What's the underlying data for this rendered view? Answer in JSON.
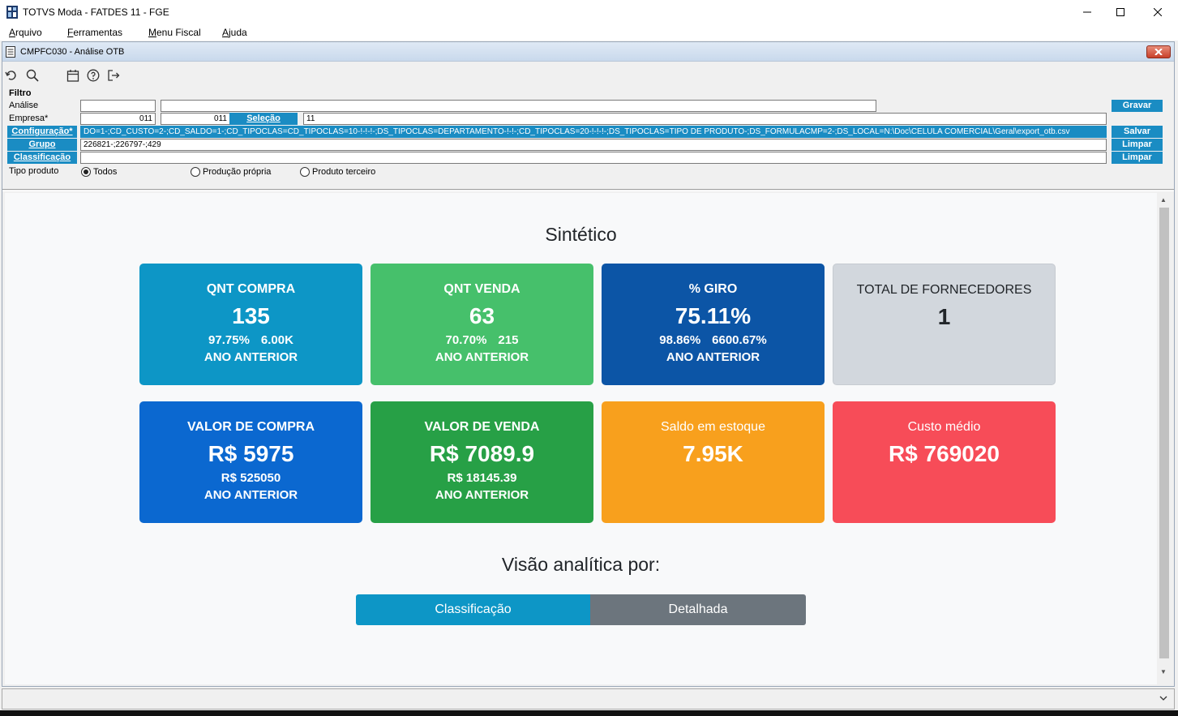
{
  "window": {
    "title": "TOTVS Moda - FATDES 11 - FGE",
    "icons": {
      "app": "app-icon",
      "minimize": "minimize-icon",
      "maximize": "maximize-icon",
      "close": "close-icon"
    }
  },
  "menubar": {
    "items": [
      {
        "first": "A",
        "rest": "rquivo"
      },
      {
        "first": "F",
        "rest": "erramentas"
      },
      {
        "first": "M",
        "rest": "enu Fiscal"
      },
      {
        "first": "A",
        "rest": "juda"
      }
    ]
  },
  "form": {
    "title": "CMPFC030 - Análise OTB",
    "toolbar": [
      "undo-icon",
      "search-icon",
      "calendar-icon",
      "help-icon",
      "exit-icon"
    ],
    "filter_label": "Filtro",
    "analise_label": "Análise",
    "analise_value": "",
    "analise_desc": "",
    "empresa_label": "Empresa*",
    "empresa_from": "011",
    "empresa_to": "011",
    "selecao_button": "Seleção",
    "selecao_value": "11",
    "configuracao_button": "Configuração*",
    "configuracao_value": "DO=1-;CD_CUSTO=2-;CD_SALDO=1-;CD_TIPOCLAS=CD_TIPOCLAS=10-!-!-!-;DS_TIPOCLAS=DEPARTAMENTO-!-!-;CD_TIPOCLAS=20-!-!-!-;DS_TIPOCLAS=TIPO DE PRODUTO-;DS_FORMULACMP=2-;DS_LOCAL=N:\\Doc\\CELULA COMERCIAL\\Geral\\export_otb.csv",
    "grupo_button": "Grupo",
    "grupo_value": "226821-;226797-;429",
    "classificacao_button": "Classificação",
    "classificacao_value": "",
    "gravar_button": "Gravar",
    "salvar_button": "Salvar",
    "limpar_button_1": "Limpar",
    "limpar_button_2": "Limpar",
    "tipo_produto_label": "Tipo produto",
    "radio_options": [
      "Todos",
      "Produção própria",
      "Produto terceiro"
    ],
    "radio_selected": "Todos"
  },
  "dashboard": {
    "sintetico_title": "Sintético",
    "cards_row1": [
      {
        "title": "QNT COMPRA",
        "main": "135",
        "sub_a": "97.75%",
        "sub_b": "6.00K",
        "prev": "ANO ANTERIOR",
        "color": "#0d96c6"
      },
      {
        "title": "QNT VENDA",
        "main": "63",
        "sub_a": "70.70%",
        "sub_b": "215",
        "prev": "ANO ANTERIOR",
        "color": "#46c06b"
      },
      {
        "title": "% GIRO",
        "main": "75.11%",
        "sub_a": "98.86%",
        "sub_b": "6600.67%",
        "prev": "ANO ANTERIOR",
        "color": "#0c55a6"
      },
      {
        "title": "TOTAL DE FORNECEDORES",
        "main": "1",
        "color": "#d2d7dd"
      }
    ],
    "cards_row2": [
      {
        "title": "VALOR DE COMPRA",
        "main": "R$ 5975",
        "sub": "R$ 525050",
        "prev": "ANO ANTERIOR",
        "color": "#0b68d0"
      },
      {
        "title": "VALOR DE VENDA",
        "main": "R$ 7089.9",
        "sub": "R$ 18145.39",
        "prev": "ANO ANTERIOR",
        "color": "#27a046"
      },
      {
        "title": "Saldo em estoque",
        "main": "7.95K",
        "color": "#f8a01d"
      },
      {
        "title": "Custo médio",
        "main": "R$ 769020",
        "color": "#f74c58"
      }
    ],
    "visao_title": "Visão analítica por:",
    "segments": [
      {
        "label": "Classificação",
        "color": "#0d96c6",
        "active": true
      },
      {
        "label": "Detalhada",
        "color": "#6c757d",
        "active": false
      }
    ]
  }
}
